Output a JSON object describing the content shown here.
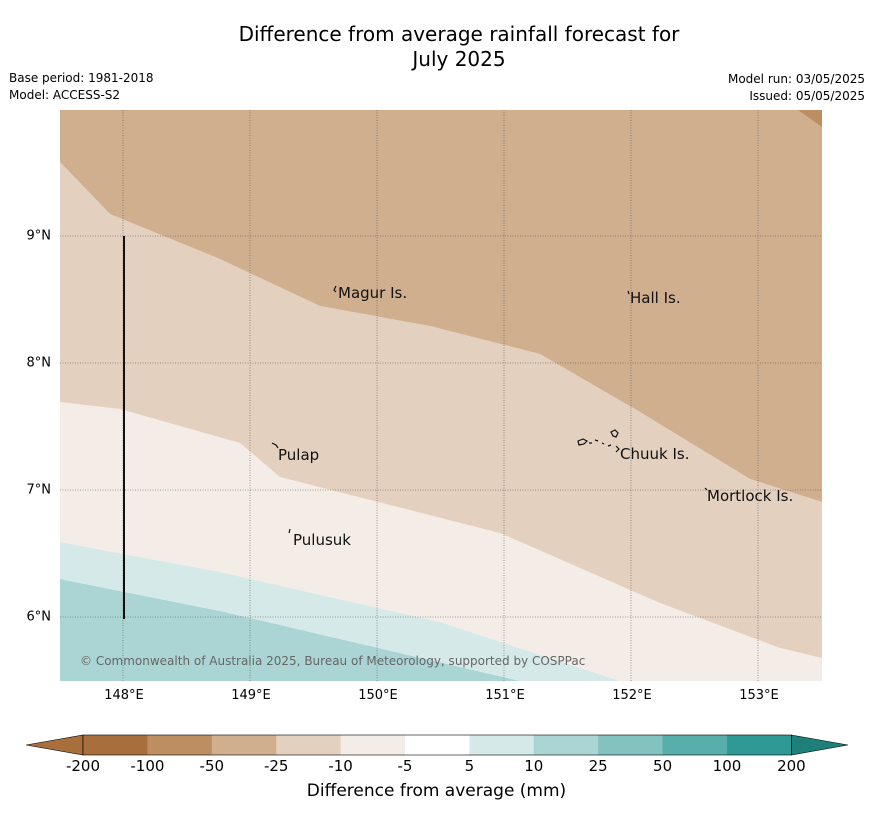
{
  "title": "Difference from average rainfall forecast for\nJuly 2025",
  "base_period": "Base period: 1981-2018",
  "model": "Model: ACCESS-S2",
  "model_run": "Model run: 03/05/2025",
  "issued": "Issued: 05/05/2025",
  "map": {
    "lat_labels": [
      "9°N",
      "8°N",
      "7°N",
      "6°N"
    ],
    "lon_labels": [
      "148°E",
      "149°E",
      "150°E",
      "151°E",
      "152°E",
      "153°E"
    ],
    "places": [
      "Magur Is.",
      "Hall Is.",
      "Pulap",
      "Chuuk Is.",
      "Mortlock Is.",
      "Pulusuk"
    ],
    "copyright": "© Commonwealth of Australia 2025, Bureau of Meteorology, supported by COSPPac"
  },
  "colorbar": {
    "ticks": [
      "-200",
      "-100",
      "-50",
      "-25",
      "-10",
      "-5",
      "5",
      "10",
      "25",
      "50",
      "100",
      "200"
    ],
    "colors": [
      "#a86f3c",
      "#bd8e61",
      "#d0af8f",
      "#e3d0bf",
      "#f4ece6",
      "#ffffff",
      "#d5e9e8",
      "#abd5d4",
      "#82c2bf",
      "#58aeaa",
      "#2f9a95",
      "#1f7f7a"
    ],
    "label": "Difference from average (mm)"
  }
}
